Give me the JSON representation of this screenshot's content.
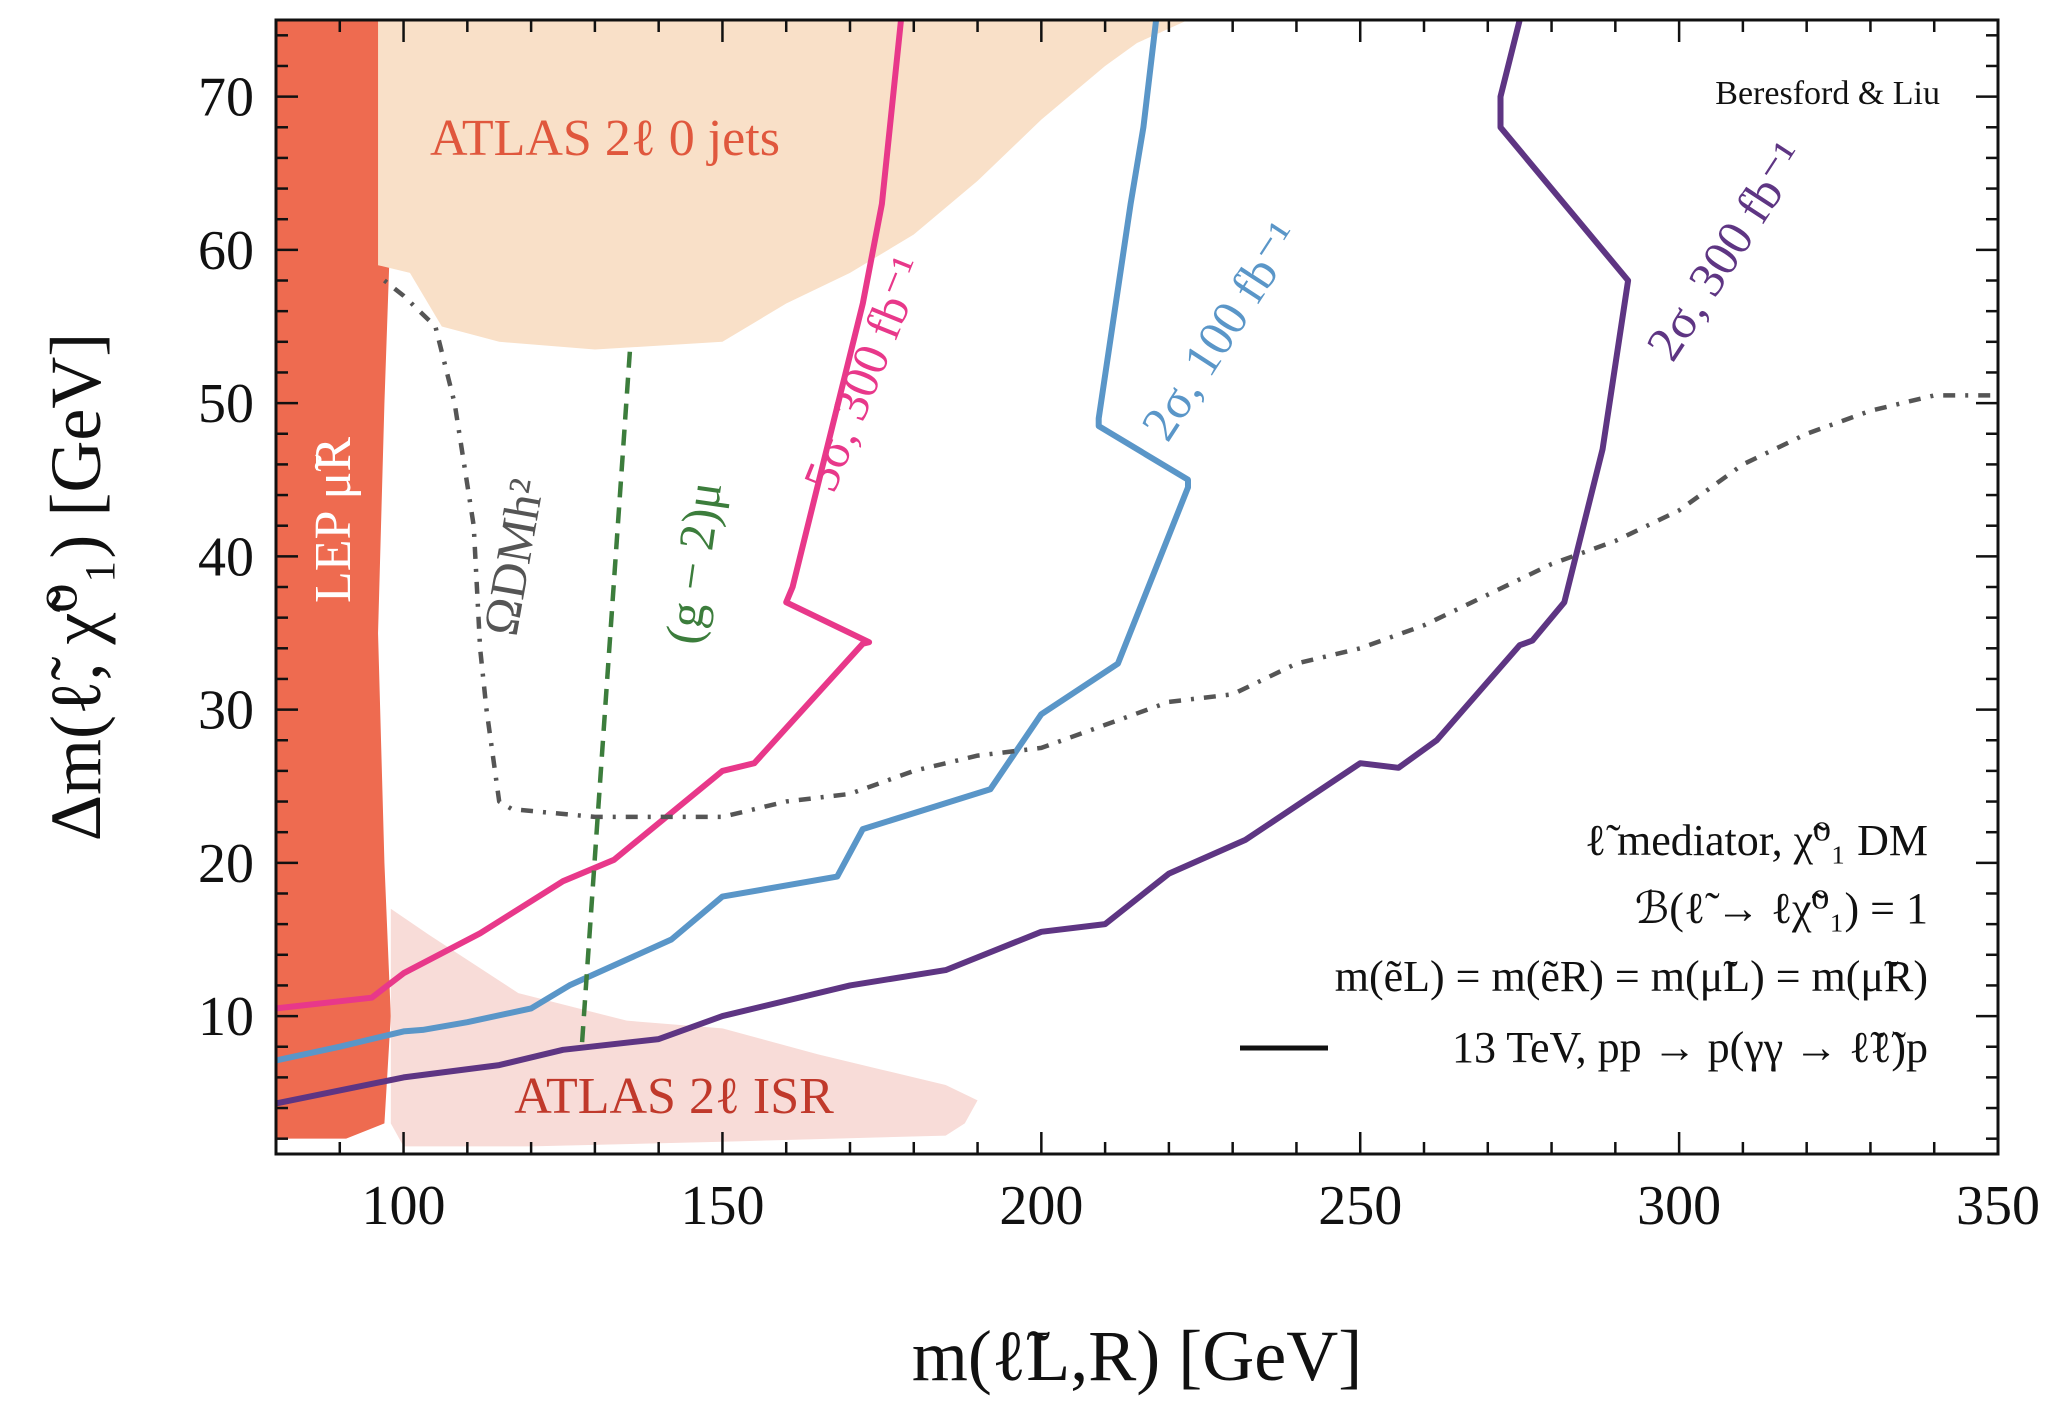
{
  "chart_data": {
    "type": "line",
    "xlabel": "m(ℓ̃L,R) [GeV]",
    "ylabel": "Δm(ℓ̃, χ̃⁰₁) [GeV]",
    "xlim": [
      80,
      350
    ],
    "ylim": [
      1,
      75
    ],
    "xticks": [
      100,
      150,
      200,
      250,
      300,
      350
    ],
    "yticks": [
      10,
      20,
      30,
      40,
      50,
      60,
      70
    ],
    "credit": "Beresford & Liu",
    "legend_text": [
      "ℓ̃ mediator, χ̃⁰₁ DM",
      "ℬ(ℓ̃ → ℓχ̃⁰₁) = 1",
      "m(ẽL) = m(ẽR) = m(μ̃L) = m(μ̃R)",
      "13 TeV, pp → p(γγ → ℓ̃ℓ̃)p"
    ],
    "series": [
      {
        "name": "5σ, 300 fb⁻¹",
        "color": "#e8388a",
        "style": "solid",
        "x": [
          80,
          95,
          100,
          112,
          125,
          133,
          150,
          155,
          172,
          173,
          160,
          161,
          172,
          175,
          178
        ],
        "y": [
          10.5,
          11.2,
          12.8,
          15.4,
          18.8,
          20.2,
          26,
          26.5,
          34.3,
          34.4,
          37,
          38,
          56.5,
          63,
          75
        ]
      },
      {
        "name": "2σ, 100 fb⁻¹",
        "color": "#5a96c8",
        "style": "solid",
        "x": [
          80,
          90,
          100,
          103,
          110,
          120,
          126,
          142,
          150,
          168,
          172,
          192,
          200,
          212,
          223,
          223,
          209,
          209,
          214,
          216,
          218
        ],
        "y": [
          7.1,
          8,
          9,
          9.1,
          9.6,
          10.5,
          12,
          15,
          17.8,
          19.1,
          22.2,
          24.8,
          29.7,
          33,
          44.5,
          45,
          48.5,
          49,
          63,
          68,
          75
        ]
      },
      {
        "name": "2σ, 300 fb⁻¹",
        "color": "#5e3583",
        "style": "solid",
        "x": [
          80,
          100,
          115,
          125,
          140,
          150,
          170,
          185,
          200,
          210,
          220,
          232,
          250,
          256,
          262,
          275,
          277,
          282,
          288,
          292,
          272,
          272,
          275
        ],
        "y": [
          4.3,
          6,
          6.8,
          7.8,
          8.5,
          10,
          12,
          13,
          15.5,
          16,
          19.3,
          21.5,
          26.5,
          26.2,
          28,
          34.2,
          34.5,
          37,
          47,
          58,
          68,
          70,
          75
        ]
      },
      {
        "name": "ΩDMh²",
        "color": "#555555",
        "style": "dot-dash",
        "x": [
          97,
          100,
          105,
          108,
          111,
          112,
          113,
          115,
          117,
          130,
          140,
          150,
          160,
          170,
          180,
          190,
          200,
          210,
          220,
          230,
          240,
          250,
          260,
          270,
          280,
          290,
          300,
          310,
          320,
          330,
          340,
          350
        ],
        "y": [
          58,
          57,
          55,
          50,
          42,
          34,
          30,
          24,
          23.5,
          23,
          23,
          23,
          24,
          24.5,
          26,
          27,
          27.5,
          29,
          30.5,
          31,
          33,
          34,
          35.5,
          37.5,
          39.5,
          41,
          43,
          46,
          48,
          49.5,
          50.5,
          50.5
        ]
      },
      {
        "name": "(g − 2)μ",
        "color": "#3c7d3c",
        "style": "dashed",
        "x": [
          128,
          135.5
        ],
        "y": [
          8.3,
          53.5
        ]
      }
    ],
    "regions": [
      {
        "name": "LEP μ̃R",
        "fill": "#ee6b50",
        "x": [
          80,
          97,
          98,
          97,
          96,
          97,
          98,
          97,
          91,
          80
        ],
        "y": [
          75,
          75,
          62,
          50,
          35,
          20,
          10,
          3,
          2,
          2
        ]
      },
      {
        "name": "ATLAS 2ℓ 0 jets",
        "fill": "#f9e0c8",
        "x": [
          96,
          101,
          106,
          115,
          130,
          150,
          160,
          170,
          180,
          190,
          200,
          210,
          215,
          223,
          230,
          96
        ],
        "y": [
          59,
          58.5,
          55,
          54,
          53.5,
          54,
          56.5,
          58.5,
          61,
          64.5,
          68.5,
          72,
          73.5,
          75,
          75,
          75
        ]
      },
      {
        "name": "ATLAS 2ℓ ISR",
        "fill": "#f8dcd8",
        "x": [
          98,
          104,
          118,
          135,
          150,
          165,
          175,
          185,
          190,
          188,
          185,
          150,
          120,
          100,
          98
        ],
        "y": [
          17,
          15.3,
          11.5,
          9.7,
          9.2,
          7.5,
          6.5,
          5.5,
          4.5,
          3,
          2.2,
          1.8,
          1.5,
          1.5,
          3
        ]
      }
    ]
  },
  "region_labels": {
    "atlas_0jets": "ATLAS 2ℓ 0 jets",
    "atlas_isr": "ATLAS 2ℓ ISR",
    "lep": "LEP μ̃R"
  },
  "curve_labels": {
    "sigma5_300": "5σ, 300 fb⁻¹",
    "sigma2_100": "2σ, 100 fb⁻¹",
    "sigma2_300": "2σ, 300 fb⁻¹",
    "omega": "ΩDMh²",
    "g2": "(g − 2)μ"
  }
}
